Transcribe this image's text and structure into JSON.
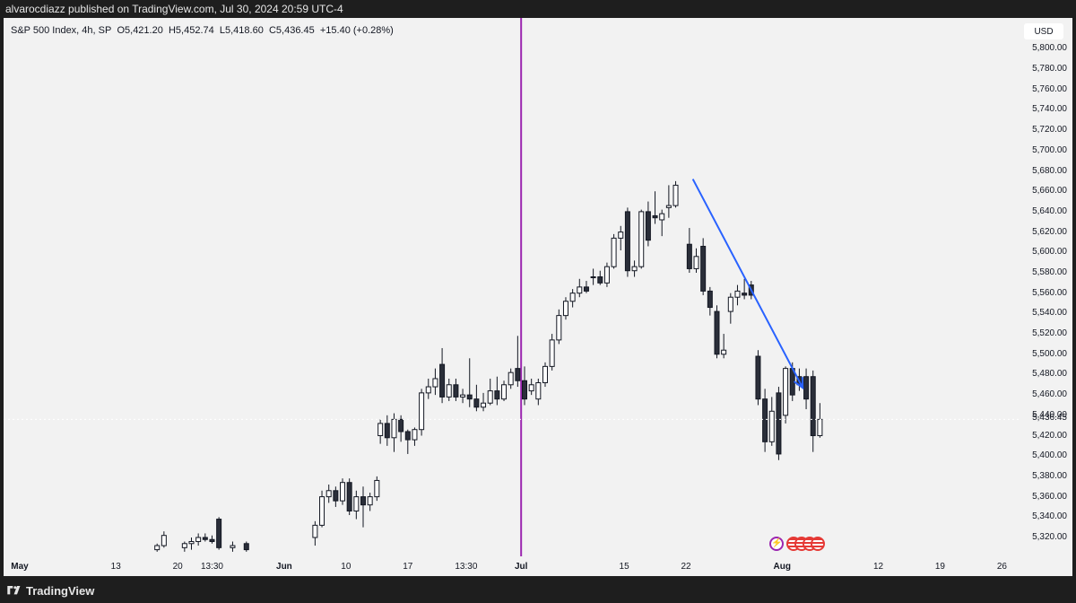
{
  "publisher": "alvarocdiazz published on TradingView.com, Jul 30, 2024 20:59 UTC-4",
  "legend": {
    "symbol": "S&P 500 Index, 4h, SP",
    "open_label": "O",
    "open": "5,421.20",
    "high_label": "H",
    "high": "5,452.74",
    "low_label": "L",
    "low": "5,418.60",
    "close_label": "C",
    "close": "5,436.45",
    "change": "+15.40 (+0.28%)"
  },
  "currency": "USD",
  "last_price": "5,436.45",
  "brand": "TradingView",
  "events_icons": [
    "lightning-icon",
    "us-flag-icon",
    "us-flag-icon",
    "us-flag-icon",
    "us-flag-icon"
  ],
  "colors": {
    "up_fill": "#ffffff",
    "down_fill": "#2a2e39",
    "candle_outline": "#131722",
    "vertical_marker": "#9c27b0",
    "arrow": "#2962ff",
    "background": "#f2f2f2"
  },
  "chart_data": {
    "type": "candlestick",
    "title": "S&P 500 Index, 4h, SP",
    "currency": "USD",
    "ylim": [
      5305,
      5825
    ],
    "y_ticks": [
      5320,
      5340,
      5360,
      5380,
      5400,
      5420,
      5440,
      5460,
      5480,
      5500,
      5520,
      5540,
      5560,
      5580,
      5600,
      5620,
      5640,
      5660,
      5680,
      5700,
      5720,
      5740,
      5760,
      5780,
      5800
    ],
    "y_tick_labels": [
      "5,320.00",
      "5,340.00",
      "5,360.00",
      "5,380.00",
      "5,400.00",
      "5,420.00",
      "5,440.00",
      "5,460.00",
      "5,480.00",
      "5,500.00",
      "5,520.00",
      "5,540.00",
      "5,560.00",
      "5,580.00",
      "5,600.00",
      "5,620.00",
      "5,640.00",
      "5,660.00",
      "5,680.00",
      "5,700.00",
      "5,720.00",
      "5,740.00",
      "5,760.00",
      "5,780.00",
      "5,800.00"
    ],
    "x_labels": [
      {
        "text": "May",
        "bold": true,
        "pos": 0
      },
      {
        "text": "13",
        "bold": false,
        "pos": 14
      },
      {
        "text": "20",
        "bold": false,
        "pos": 23
      },
      {
        "text": "13:30",
        "bold": false,
        "pos": 28
      },
      {
        "text": "Jun",
        "bold": true,
        "pos": 38.5
      },
      {
        "text": "10",
        "bold": false,
        "pos": 47.5
      },
      {
        "text": "17",
        "bold": false,
        "pos": 56.5
      },
      {
        "text": "13:30",
        "bold": false,
        "pos": 65
      },
      {
        "text": "Jul",
        "bold": true,
        "pos": 73
      },
      {
        "text": "15",
        "bold": false,
        "pos": 88
      },
      {
        "text": "22",
        "bold": false,
        "pos": 97
      },
      {
        "text": "Aug",
        "bold": true,
        "pos": 111
      },
      {
        "text": "12",
        "bold": false,
        "pos": 125
      },
      {
        "text": "19",
        "bold": false,
        "pos": 134
      },
      {
        "text": "26",
        "bold": false,
        "pos": 143
      }
    ],
    "vertical_line_pos": 73,
    "trend_arrow": {
      "from": {
        "pos": 98,
        "price": 5672
      },
      "to": {
        "pos": 114,
        "price": 5467
      }
    },
    "candles": [
      {
        "pos": 20,
        "o": 5308,
        "h": 5314,
        "l": 5306,
        "c": 5312
      },
      {
        "pos": 21,
        "o": 5312,
        "h": 5326,
        "l": 5310,
        "c": 5322
      },
      {
        "pos": 24,
        "o": 5310,
        "h": 5316,
        "l": 5306,
        "c": 5314
      },
      {
        "pos": 25,
        "o": 5314,
        "h": 5320,
        "l": 5308,
        "c": 5316
      },
      {
        "pos": 26,
        "o": 5316,
        "h": 5324,
        "l": 5312,
        "c": 5320
      },
      {
        "pos": 27,
        "o": 5320,
        "h": 5324,
        "l": 5316,
        "c": 5318
      },
      {
        "pos": 28,
        "o": 5318,
        "h": 5322,
        "l": 5314,
        "c": 5316
      },
      {
        "pos": 29,
        "o": 5338,
        "h": 5340,
        "l": 5308,
        "c": 5310
      },
      {
        "pos": 31,
        "o": 5310,
        "h": 5316,
        "l": 5306,
        "c": 5312
      },
      {
        "pos": 33,
        "o": 5314,
        "h": 5316,
        "l": 5306,
        "c": 5308
      },
      {
        "pos": 43,
        "o": 5320,
        "h": 5336,
        "l": 5312,
        "c": 5332
      },
      {
        "pos": 44,
        "o": 5332,
        "h": 5366,
        "l": 5330,
        "c": 5360
      },
      {
        "pos": 45,
        "o": 5360,
        "h": 5372,
        "l": 5354,
        "c": 5366
      },
      {
        "pos": 46,
        "o": 5366,
        "h": 5370,
        "l": 5350,
        "c": 5356
      },
      {
        "pos": 47,
        "o": 5356,
        "h": 5378,
        "l": 5352,
        "c": 5374
      },
      {
        "pos": 48,
        "o": 5374,
        "h": 5378,
        "l": 5342,
        "c": 5346
      },
      {
        "pos": 49,
        "o": 5346,
        "h": 5366,
        "l": 5338,
        "c": 5360
      },
      {
        "pos": 50,
        "o": 5360,
        "h": 5370,
        "l": 5330,
        "c": 5352
      },
      {
        "pos": 51,
        "o": 5352,
        "h": 5364,
        "l": 5346,
        "c": 5360
      },
      {
        "pos": 52,
        "o": 5360,
        "h": 5380,
        "l": 5356,
        "c": 5376
      },
      {
        "pos": 52.5,
        "o": 5420,
        "h": 5436,
        "l": 5412,
        "c": 5432
      },
      {
        "pos": 53.5,
        "o": 5432,
        "h": 5440,
        "l": 5410,
        "c": 5418
      },
      {
        "pos": 54.5,
        "o": 5418,
        "h": 5442,
        "l": 5404,
        "c": 5436
      },
      {
        "pos": 55.5,
        "o": 5436,
        "h": 5440,
        "l": 5414,
        "c": 5424
      },
      {
        "pos": 56.5,
        "o": 5424,
        "h": 5426,
        "l": 5402,
        "c": 5416
      },
      {
        "pos": 57.5,
        "o": 5416,
        "h": 5428,
        "l": 5410,
        "c": 5426
      },
      {
        "pos": 58.5,
        "o": 5426,
        "h": 5466,
        "l": 5420,
        "c": 5462
      },
      {
        "pos": 59.5,
        "o": 5462,
        "h": 5476,
        "l": 5456,
        "c": 5468
      },
      {
        "pos": 60.5,
        "o": 5468,
        "h": 5486,
        "l": 5460,
        "c": 5476
      },
      {
        "pos": 61.5,
        "o": 5490,
        "h": 5506,
        "l": 5452,
        "c": 5458
      },
      {
        "pos": 62.5,
        "o": 5458,
        "h": 5476,
        "l": 5454,
        "c": 5470
      },
      {
        "pos": 63.5,
        "o": 5470,
        "h": 5476,
        "l": 5454,
        "c": 5458
      },
      {
        "pos": 64.5,
        "o": 5458,
        "h": 5466,
        "l": 5452,
        "c": 5460
      },
      {
        "pos": 65.5,
        "o": 5460,
        "h": 5496,
        "l": 5448,
        "c": 5456
      },
      {
        "pos": 66.5,
        "o": 5456,
        "h": 5470,
        "l": 5444,
        "c": 5448
      },
      {
        "pos": 67.5,
        "o": 5448,
        "h": 5462,
        "l": 5444,
        "c": 5452
      },
      {
        "pos": 68.5,
        "o": 5452,
        "h": 5476,
        "l": 5450,
        "c": 5464
      },
      {
        "pos": 69.5,
        "o": 5464,
        "h": 5478,
        "l": 5450,
        "c": 5456
      },
      {
        "pos": 70.5,
        "o": 5456,
        "h": 5474,
        "l": 5454,
        "c": 5470
      },
      {
        "pos": 71.5,
        "o": 5470,
        "h": 5486,
        "l": 5466,
        "c": 5482
      },
      {
        "pos": 72.5,
        "o": 5486,
        "h": 5518,
        "l": 5468,
        "c": 5474
      },
      {
        "pos": 73.5,
        "o": 5474,
        "h": 5488,
        "l": 5450,
        "c": 5456
      },
      {
        "pos": 74.5,
        "o": 5464,
        "h": 5476,
        "l": 5460,
        "c": 5470
      },
      {
        "pos": 75.5,
        "o": 5456,
        "h": 5476,
        "l": 5450,
        "c": 5472
      },
      {
        "pos": 76.5,
        "o": 5472,
        "h": 5492,
        "l": 5468,
        "c": 5488
      },
      {
        "pos": 77.5,
        "o": 5488,
        "h": 5520,
        "l": 5484,
        "c": 5514
      },
      {
        "pos": 78.5,
        "o": 5514,
        "h": 5544,
        "l": 5510,
        "c": 5538
      },
      {
        "pos": 79.5,
        "o": 5538,
        "h": 5556,
        "l": 5534,
        "c": 5552
      },
      {
        "pos": 80.5,
        "o": 5552,
        "h": 5564,
        "l": 5546,
        "c": 5560
      },
      {
        "pos": 81.5,
        "o": 5560,
        "h": 5574,
        "l": 5556,
        "c": 5566
      },
      {
        "pos": 82.5,
        "o": 5566,
        "h": 5572,
        "l": 5560,
        "c": 5562
      },
      {
        "pos": 83.5,
        "o": 5576,
        "h": 5584,
        "l": 5568,
        "c": 5576
      },
      {
        "pos": 84.5,
        "o": 5576,
        "h": 5582,
        "l": 5568,
        "c": 5570
      },
      {
        "pos": 85.5,
        "o": 5570,
        "h": 5590,
        "l": 5566,
        "c": 5586
      },
      {
        "pos": 86.5,
        "o": 5586,
        "h": 5618,
        "l": 5584,
        "c": 5614
      },
      {
        "pos": 87.5,
        "o": 5614,
        "h": 5626,
        "l": 5602,
        "c": 5620
      },
      {
        "pos": 88.5,
        "o": 5640,
        "h": 5644,
        "l": 5576,
        "c": 5582
      },
      {
        "pos": 89.5,
        "o": 5582,
        "h": 5592,
        "l": 5576,
        "c": 5586
      },
      {
        "pos": 90.5,
        "o": 5586,
        "h": 5642,
        "l": 5584,
        "c": 5640
      },
      {
        "pos": 91.5,
        "o": 5640,
        "h": 5650,
        "l": 5606,
        "c": 5612
      },
      {
        "pos": 92.5,
        "o": 5636,
        "h": 5660,
        "l": 5628,
        "c": 5634
      },
      {
        "pos": 93.5,
        "o": 5632,
        "h": 5642,
        "l": 5616,
        "c": 5638
      },
      {
        "pos": 94.5,
        "o": 5644,
        "h": 5666,
        "l": 5634,
        "c": 5646
      },
      {
        "pos": 95.5,
        "o": 5646,
        "h": 5670,
        "l": 5644,
        "c": 5666
      },
      {
        "pos": 97.5,
        "o": 5608,
        "h": 5624,
        "l": 5580,
        "c": 5584
      },
      {
        "pos": 98.5,
        "o": 5584,
        "h": 5604,
        "l": 5580,
        "c": 5596
      },
      {
        "pos": 99.5,
        "o": 5606,
        "h": 5614,
        "l": 5558,
        "c": 5562
      },
      {
        "pos": 100.5,
        "o": 5562,
        "h": 5566,
        "l": 5538,
        "c": 5546
      },
      {
        "pos": 101.5,
        "o": 5542,
        "h": 5548,
        "l": 5496,
        "c": 5500
      },
      {
        "pos": 102.5,
        "o": 5500,
        "h": 5520,
        "l": 5496,
        "c": 5504
      },
      {
        "pos": 103.5,
        "o": 5542,
        "h": 5560,
        "l": 5530,
        "c": 5556
      },
      {
        "pos": 104.5,
        "o": 5556,
        "h": 5568,
        "l": 5548,
        "c": 5562
      },
      {
        "pos": 105.5,
        "o": 5560,
        "h": 5574,
        "l": 5554,
        "c": 5558
      },
      {
        "pos": 106.5,
        "o": 5568,
        "h": 5572,
        "l": 5554,
        "c": 5558
      },
      {
        "pos": 107.5,
        "o": 5498,
        "h": 5504,
        "l": 5450,
        "c": 5456
      },
      {
        "pos": 108.5,
        "o": 5456,
        "h": 5466,
        "l": 5404,
        "c": 5414
      },
      {
        "pos": 109.5,
        "o": 5414,
        "h": 5458,
        "l": 5410,
        "c": 5444
      },
      {
        "pos": 110.5,
        "o": 5462,
        "h": 5468,
        "l": 5396,
        "c": 5402
      },
      {
        "pos": 111.5,
        "o": 5440,
        "h": 5488,
        "l": 5432,
        "c": 5486
      },
      {
        "pos": 112.5,
        "o": 5486,
        "h": 5492,
        "l": 5454,
        "c": 5460
      },
      {
        "pos": 113.5,
        "o": 5478,
        "h": 5486,
        "l": 5464,
        "c": 5470
      },
      {
        "pos": 114.5,
        "o": 5478,
        "h": 5486,
        "l": 5446,
        "c": 5456
      },
      {
        "pos": 115.5,
        "o": 5478,
        "h": 5484,
        "l": 5404,
        "c": 5420
      },
      {
        "pos": 116.5,
        "o": 5420,
        "h": 5452,
        "l": 5418,
        "c": 5436
      }
    ]
  }
}
